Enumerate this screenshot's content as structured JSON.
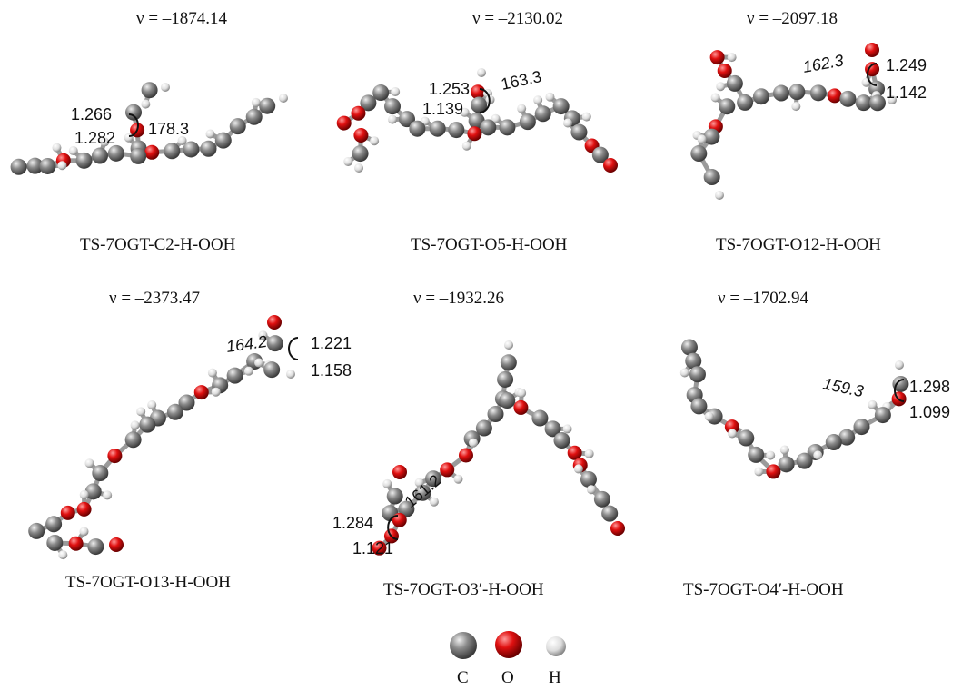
{
  "panels": [
    {
      "frequency": "ν = –1874.14",
      "name": "TS-7OGT-C2-H-OOH",
      "labels": [
        "1.266",
        "1.282",
        "178.3"
      ]
    },
    {
      "frequency": "ν = –2130.02",
      "name": "TS-7OGT-O5-H-OOH",
      "labels": [
        "1.253",
        "1.139",
        "163.3"
      ]
    },
    {
      "frequency": "ν = –2097.18",
      "name": "TS-7OGT-O12-H-OOH",
      "labels": [
        "162.3",
        "1.249",
        "1.142"
      ]
    },
    {
      "frequency": "ν = –2373.47",
      "name": "TS-7OGT-O13-H-OOH",
      "labels": [
        "164.2",
        "1.221",
        "1.158"
      ]
    },
    {
      "frequency": "ν = –1932.26",
      "name": "TS-7OGT-O3′-H-OOH",
      "labels": [
        "161.2",
        "1.284",
        "1.121"
      ]
    },
    {
      "frequency": "ν = –1702.94",
      "name": "TS-7OGT-O4′-H-OOH",
      "labels": [
        "159.3",
        "1.298",
        "1.099"
      ]
    }
  ],
  "legend": [
    "C",
    "O",
    "H"
  ]
}
